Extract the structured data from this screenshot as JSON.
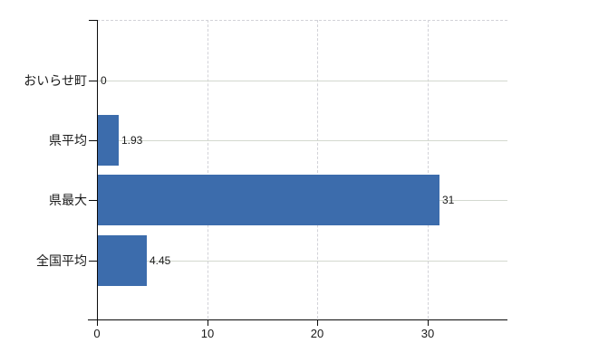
{
  "chart_data": {
    "type": "bar",
    "orientation": "horizontal",
    "title": "",
    "categories": [
      "おいらせ町",
      "県平均",
      "県最大",
      "全国平均"
    ],
    "values": [
      0,
      1.93,
      31,
      4.45
    ],
    "data_labels": [
      "0",
      "1.93",
      "31",
      "4.45"
    ],
    "x_ticks": [
      0,
      10,
      20,
      30
    ],
    "x_tick_labels": [
      "0",
      "10",
      "20",
      "30"
    ],
    "xlim": [
      0,
      37.3
    ],
    "xlabel": "",
    "ylabel": "",
    "legend_position": "none",
    "grid": {
      "vertical_lines": "dashed at 10, 20, 30",
      "horizontal_lines": "solid at each category row",
      "plot_top_border": "dashed"
    },
    "colors": {
      "bar": "#3c6cac",
      "axis": "#0a0a0a",
      "grid_solid": "#d3d8cf",
      "grid_dashed": "#d2d2d8",
      "label_text": "#1a1a1a",
      "background": "#ffffff"
    }
  }
}
